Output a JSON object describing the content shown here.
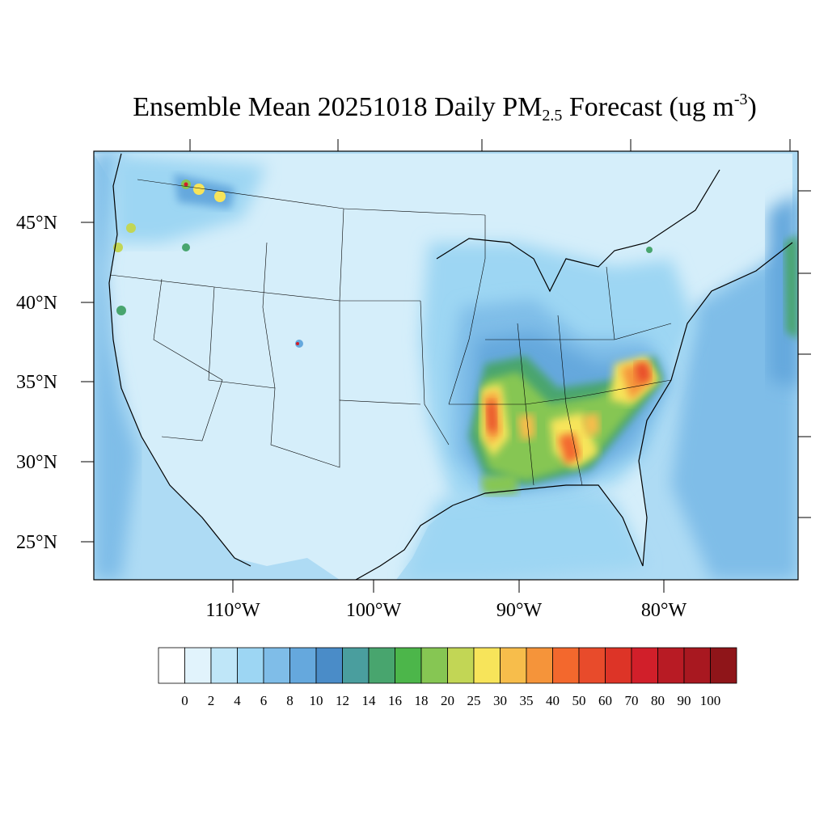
{
  "title": {
    "prefix": "Ensemble Mean 20251018 Daily PM",
    "subscript": "2.5",
    "middle": " Forecast (ug m",
    "superscript": "-3",
    "suffix": ")"
  },
  "latitude_labels": [
    "45°N",
    "40°N",
    "35°N",
    "30°N",
    "25°N"
  ],
  "longitude_labels": [
    "110°W",
    "100°W",
    "90°W",
    "80°W"
  ],
  "colorbar": {
    "labels": [
      "0",
      "2",
      "4",
      "6",
      "8",
      "10",
      "12",
      "14",
      "16",
      "18",
      "20",
      "25",
      "30",
      "35",
      "40",
      "50",
      "60",
      "70",
      "80",
      "90",
      "100"
    ],
    "colors": [
      "#ffffff",
      "#e1f3fc",
      "#bfe6f8",
      "#9dd6f3",
      "#7fbde8",
      "#65a8dd",
      "#4a8cc8",
      "#4a9e9e",
      "#48a56e",
      "#4cb64a",
      "#86c653",
      "#c2d655",
      "#f7e45a",
      "#f7bd4b",
      "#f5943a",
      "#f3682d",
      "#e84b2b",
      "#dd3427",
      "#d11f2a",
      "#b81b24",
      "#a81820",
      "#8f1519"
    ]
  },
  "colors": {
    "ocean_base": "#aedbf4",
    "land_base": "#d5eefa",
    "outline": "#000000"
  }
}
